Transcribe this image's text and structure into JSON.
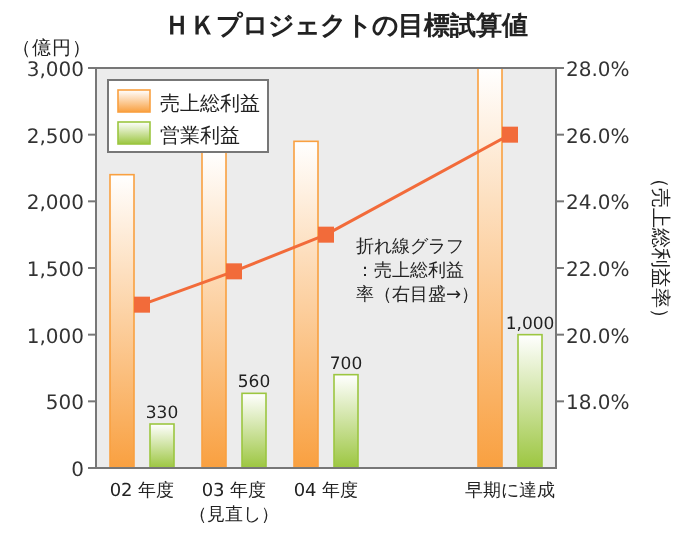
{
  "chart_data": {
    "type": "bar",
    "title": "ＨＫプロジェクトの目標試算値",
    "ylabel": "（億円）",
    "y2label": "（売上総利益率）",
    "categories": [
      "02 年度",
      "03 年度（見直し）",
      "04 年度",
      null,
      "早期に達成"
    ],
    "series": [
      {
        "name": "売上総利益",
        "color": "#f9a040",
        "values": [
          2200,
          2370,
          2450,
          null,
          3000
        ]
      },
      {
        "name": "営業利益",
        "color": "#9cc640",
        "values": [
          330,
          560,
          700,
          null,
          1000
        ],
        "value_labels": [
          "330",
          "560",
          "700",
          null,
          "1,000"
        ]
      },
      {
        "type": "line",
        "axis": "y2",
        "color": "#f26b3a",
        "marker": "square",
        "values": [
          20.9,
          21.9,
          23.0,
          null,
          26.0
        ]
      }
    ],
    "ylim": [
      0,
      3000
    ],
    "yticks": [
      {
        "value": 0,
        "label": "0"
      },
      {
        "value": 500,
        "label": "500"
      },
      {
        "value": 1000,
        "label": "1,000"
      },
      {
        "value": 1500,
        "label": "1,500"
      },
      {
        "value": 2000,
        "label": "2,000"
      },
      {
        "value": 2500,
        "label": "2,500"
      },
      {
        "value": 3000,
        "label": "3,000"
      }
    ],
    "y2lim": [
      16,
      28
    ],
    "y2ticks": [
      {
        "value": 18,
        "label": "18.0%"
      },
      {
        "value": 20,
        "label": "20.0%"
      },
      {
        "value": 22,
        "label": "22.0%"
      },
      {
        "value": 24,
        "label": "24.0%"
      },
      {
        "value": 26,
        "label": "26.0%"
      },
      {
        "value": 28,
        "label": "28.0%"
      }
    ],
    "annotations": [
      "折れ線グラフ：売上総利益率（右目盛→）"
    ],
    "legend": "top left",
    "grid": false
  }
}
